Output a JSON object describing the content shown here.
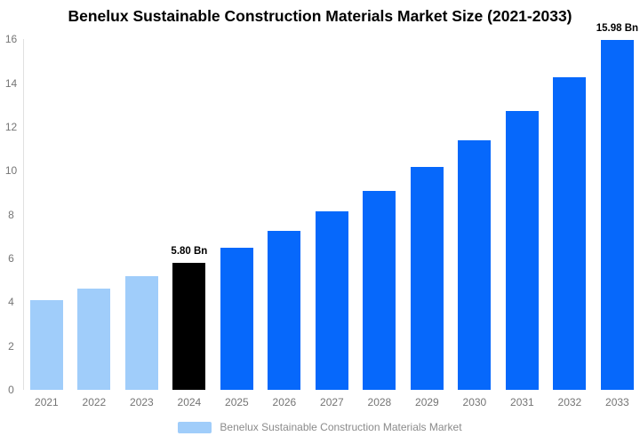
{
  "title": "Benelux Sustainable Construction Materials Market Size (2021-2033)",
  "chart_data": {
    "type": "bar",
    "title": "Benelux Sustainable Construction Materials Market Size (2021-2033)",
    "categories": [
      "2021",
      "2022",
      "2023",
      "2024",
      "2025",
      "2026",
      "2027",
      "2028",
      "2029",
      "2030",
      "2031",
      "2032",
      "2033"
    ],
    "values": [
      4.1,
      4.62,
      5.18,
      5.8,
      6.49,
      7.27,
      8.13,
      9.1,
      10.18,
      11.4,
      12.75,
      14.27,
      15.98
    ],
    "unit": "Bn",
    "bar_colors": [
      "#a0cdfa",
      "#a0cdfa",
      "#a0cdfa",
      "#000000",
      "#0668fb",
      "#0668fb",
      "#0668fb",
      "#0668fb",
      "#0668fb",
      "#0668fb",
      "#0668fb",
      "#0668fb",
      "#0668fb"
    ],
    "data_labels": [
      {
        "category": "2024",
        "text": "5.80 Bn"
      },
      {
        "category": "2033",
        "text": "15.98 Bn"
      }
    ],
    "xlabel": "",
    "ylabel": "",
    "ylim": [
      0,
      16
    ],
    "yticks": [
      0,
      2,
      4,
      6,
      8,
      10,
      12,
      14,
      16
    ],
    "grid": false,
    "legend": {
      "label": "Benelux Sustainable Construction Materials Market",
      "swatch_color": "#a0cdfa",
      "position": "bottom"
    }
  },
  "colors": {
    "past_bars": "#a0cdfa",
    "highlight_bar": "#000000",
    "forecast_bars": "#0668fb",
    "title_text": "#000000",
    "tick_text": "#757575",
    "legend_text": "#8b8b8b",
    "axis_line": "#e0e0e0",
    "background": "#ffffff"
  }
}
